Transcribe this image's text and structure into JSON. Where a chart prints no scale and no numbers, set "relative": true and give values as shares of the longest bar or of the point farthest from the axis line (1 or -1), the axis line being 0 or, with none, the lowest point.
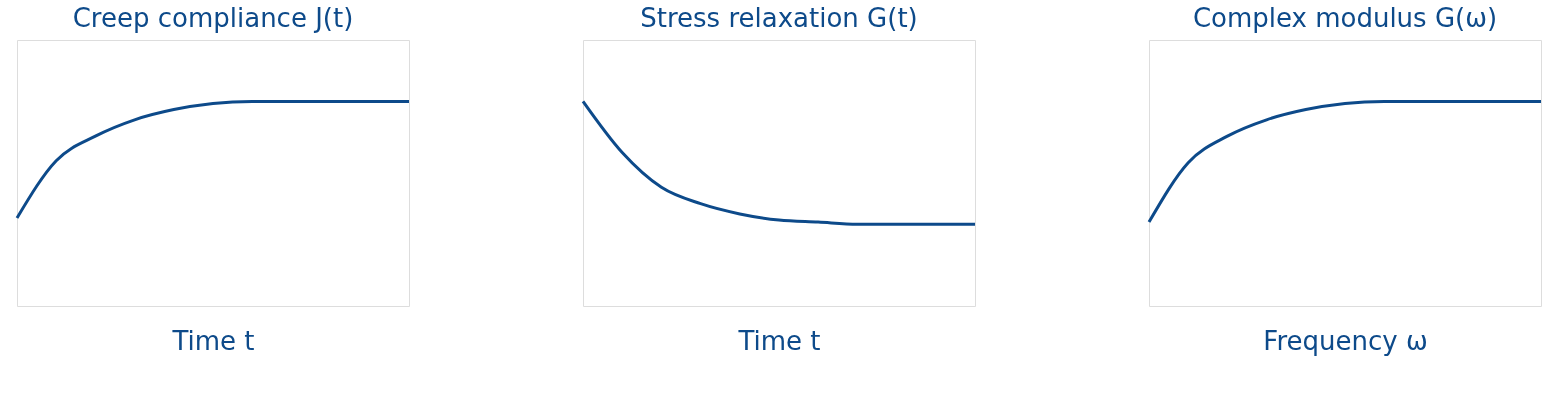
{
  "chart_data": [
    {
      "type": "line",
      "title": "Creep compliance J(t)",
      "xlabel": "Time t",
      "relative": true,
      "categories": [
        null,
        null,
        null,
        null,
        null,
        null,
        null,
        null,
        null,
        null,
        null
      ],
      "series": [
        {
          "color": "#0d4a8a",
          "values": [
            0.43,
            0.71,
            0.83,
            0.91,
            0.96,
            0.99,
            1,
            1,
            1,
            1,
            1
          ]
        }
      ]
    },
    {
      "type": "line",
      "title": "Stress relaxation G(t)",
      "xlabel": "Time t",
      "relative": true,
      "categories": [
        null,
        null,
        null,
        null,
        null,
        null,
        null,
        null,
        null,
        null,
        null
      ],
      "series": [
        {
          "color": "#0d4a8a",
          "values": [
            1,
            0.75,
            0.58,
            0.5,
            0.45,
            0.42,
            0.41,
            0.4,
            0.4,
            0.4,
            0.4
          ]
        }
      ]
    },
    {
      "type": "line",
      "title": "Complex modulus G(ω)",
      "xlabel": "Frequency ω",
      "relative": true,
      "categories": [
        null,
        null,
        null,
        null,
        null,
        null,
        null,
        null,
        null,
        null,
        null
      ],
      "series": [
        {
          "color": "#0d4a8a",
          "values": [
            0.41,
            0.7,
            0.83,
            0.91,
            0.96,
            0.99,
            1,
            1,
            1,
            1,
            1
          ]
        }
      ]
    }
  ]
}
